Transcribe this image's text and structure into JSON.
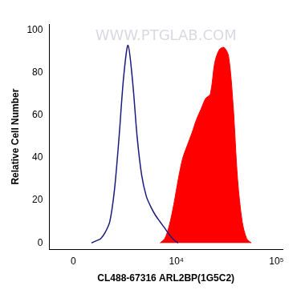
{
  "chart_data": {
    "type": "line",
    "watermark": "WWW.PTGLAB.COM",
    "x_label": "CL488-67316 ARL2BP(1G5C2)",
    "y_label": "Relative Cell Number",
    "x": [
      818,
      1040,
      1270,
      1520,
      1780,
      2070,
      2380,
      2710,
      3060,
      3470,
      3880,
      4350,
      4880,
      5450,
      6100,
      6800,
      7600,
      8440,
      9400,
      10450,
      11600,
      12900,
      14400,
      15900,
      17700,
      19700,
      21900,
      24300,
      27000,
      30000,
      33300,
      37000,
      41000,
      45600,
      50600,
      56200
    ],
    "series": [
      {
        "color": "#1a1a80",
        "line_style": "solid",
        "values": [
          0,
          1,
          2,
          5,
          10,
          25,
          50,
          78,
          93,
          75,
          50,
          32,
          22,
          17,
          13,
          10,
          7,
          4,
          1.5,
          0,
          null,
          null,
          null,
          null,
          null,
          null,
          null,
          null,
          null,
          null,
          null,
          null,
          null,
          null,
          null,
          null
        ]
      },
      {
        "color": "#ff0000",
        "line_style": "filled",
        "values": [
          null,
          null,
          null,
          null,
          null,
          null,
          null,
          null,
          null,
          null,
          null,
          null,
          null,
          null,
          null,
          0,
          2,
          8,
          18,
          30,
          40,
          46,
          52,
          58,
          63,
          68,
          70,
          85,
          91,
          92,
          88,
          65,
          30,
          10,
          2,
          0
        ]
      }
    ],
    "xlim": [
      -1100,
      115000
    ],
    "xticks": [
      0,
      {
        "value": 10000,
        "label": "10⁴"
      },
      {
        "value": 100000,
        "label": "10⁵"
      }
    ],
    "ylim": [
      -3,
      103
    ],
    "yticks": [
      0,
      20,
      40,
      60,
      80,
      100
    ],
    "grid": false,
    "legend": "none"
  }
}
